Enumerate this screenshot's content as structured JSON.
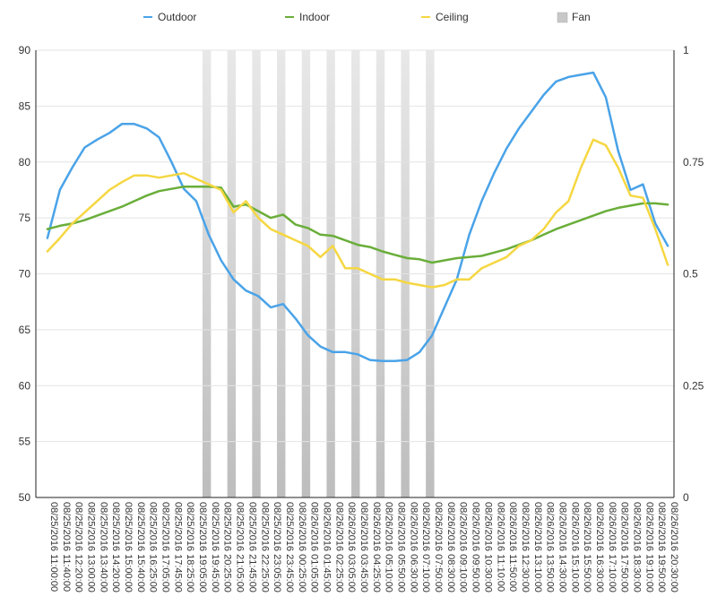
{
  "chart_data": {
    "type": "line",
    "legend": [
      {
        "name": "Outdoor",
        "color": "#4aa3e8",
        "kind": "line"
      },
      {
        "name": "Indoor",
        "color": "#6aae3a",
        "kind": "line"
      },
      {
        "name": "Ceiling",
        "color": "#f5d742",
        "kind": "line"
      },
      {
        "name": "Fan",
        "color": "#c8c8c8",
        "kind": "bar"
      }
    ],
    "legend_position": "top",
    "grid": true,
    "y_left": {
      "ticks": [
        50,
        55,
        60,
        65,
        70,
        75,
        80,
        85,
        90
      ],
      "range": [
        50,
        90
      ]
    },
    "y_right": {
      "ticks": [
        "0",
        "0.25",
        "0.5",
        "0.75",
        "1"
      ],
      "range": [
        0,
        1
      ]
    },
    "x_labels": [
      "08/25/2016 11:00:00",
      "08/25/2016 11:40:00",
      "08/25/2016 12:20:00",
      "08/25/2016 13:00:00",
      "08/25/2016 13:40:00",
      "08/25/2016 14:20:00",
      "08/25/2016 15:00:00",
      "08/25/2016 15:40:00",
      "08/25/2016 16:25:00",
      "08/25/2016 17:05:00",
      "08/25/2016 17:45:00",
      "08/25/2016 18:25:00",
      "08/25/2016 19:05:00",
      "08/25/2016 19:45:00",
      "08/25/2016 20:25:00",
      "08/25/2016 21:05:00",
      "08/25/2016 21:45:00",
      "08/25/2016 22:25:00",
      "08/25/2016 23:05:00",
      "08/25/2016 23:45:00",
      "08/26/2016 00:25:00",
      "08/26/2016 01:05:00",
      "08/26/2016 01:45:00",
      "08/26/2016 02:25:00",
      "08/26/2016 03:05:00",
      "08/26/2016 03:45:00",
      "08/26/2016 04:25:00",
      "08/26/2016 05:10:00",
      "08/26/2016 05:50:00",
      "08/26/2016 06:30:00",
      "08/26/2016 07:10:00",
      "08/26/2016 07:50:00",
      "08/26/2016 08:30:00",
      "08/26/2016 09:10:00",
      "08/26/2016 09:50:00",
      "08/26/2016 10:30:00",
      "08/26/2016 11:10:00",
      "08/26/2016 11:50:00",
      "08/26/2016 12:30:00",
      "08/26/2016 13:10:00",
      "08/26/2016 13:50:00",
      "08/26/2016 14:30:00",
      "08/26/2016 15:10:00",
      "08/26/2016 15:50:00",
      "08/26/2016 16:30:00",
      "08/26/2016 17:10:00",
      "08/26/2016 17:50:00",
      "08/26/2016 18:30:00",
      "08/26/2016 19:10:00",
      "08/26/2016 19:50:00",
      "08/26/2016 20:30:00"
    ],
    "fan_on_intervals": [
      {
        "start": "08/25/2016 19:45:00",
        "end": "08/25/2016 20:25:00",
        "value": 1
      },
      {
        "start": "08/25/2016 21:05:00",
        "end": "08/25/2016 21:45:00",
        "value": 1
      },
      {
        "start": "08/25/2016 22:25:00",
        "end": "08/25/2016 23:05:00",
        "value": 1
      },
      {
        "start": "08/25/2016 23:45:00",
        "end": "08/26/2016 00:25:00",
        "value": 1
      },
      {
        "start": "08/26/2016 01:05:00",
        "end": "08/26/2016 01:45:00",
        "value": 1
      },
      {
        "start": "08/26/2016 02:25:00",
        "end": "08/26/2016 03:05:00",
        "value": 1
      },
      {
        "start": "08/26/2016 03:45:00",
        "end": "08/26/2016 04:25:00",
        "value": 1
      },
      {
        "start": "08/26/2016 05:10:00",
        "end": "08/26/2016 05:50:00",
        "value": 1
      },
      {
        "start": "08/26/2016 06:30:00",
        "end": "08/26/2016 07:10:00",
        "value": 1
      },
      {
        "start": "08/26/2016 07:50:00",
        "end": "08/26/2016 08:30:00",
        "value": 1
      }
    ],
    "series": [
      {
        "name": "Outdoor",
        "x": [
          "08/25/2016 11:00:00",
          "08/25/2016 11:40:00",
          "08/25/2016 12:20:00",
          "08/25/2016 13:00:00",
          "08/25/2016 13:40:00",
          "08/25/2016 14:20:00",
          "08/25/2016 15:00:00",
          "08/25/2016 15:40:00",
          "08/25/2016 16:25:00",
          "08/25/2016 17:05:00",
          "08/25/2016 17:45:00",
          "08/25/2016 18:25:00",
          "08/25/2016 19:05:00",
          "08/25/2016 19:45:00",
          "08/25/2016 20:25:00",
          "08/25/2016 21:05:00",
          "08/25/2016 21:45:00",
          "08/25/2016 22:25:00",
          "08/25/2016 23:05:00",
          "08/25/2016 23:45:00",
          "08/26/2016 00:25:00",
          "08/26/2016 01:05:00",
          "08/26/2016 01:45:00",
          "08/26/2016 02:25:00",
          "08/26/2016 03:05:00",
          "08/26/2016 03:45:00",
          "08/26/2016 04:25:00",
          "08/26/2016 05:10:00",
          "08/26/2016 05:50:00",
          "08/26/2016 06:30:00",
          "08/26/2016 07:10:00",
          "08/26/2016 07:50:00",
          "08/26/2016 08:30:00",
          "08/26/2016 09:10:00",
          "08/26/2016 09:50:00",
          "08/26/2016 10:30:00",
          "08/26/2016 11:10:00",
          "08/26/2016 11:50:00",
          "08/26/2016 12:30:00",
          "08/26/2016 13:10:00",
          "08/26/2016 13:50:00",
          "08/26/2016 14:30:00",
          "08/26/2016 15:10:00",
          "08/26/2016 15:50:00",
          "08/26/2016 16:30:00",
          "08/26/2016 17:10:00",
          "08/26/2016 17:50:00",
          "08/26/2016 18:30:00",
          "08/26/2016 19:10:00",
          "08/26/2016 19:50:00",
          "08/26/2016 20:30:00"
        ],
        "y": [
          73.2,
          77.5,
          79.5,
          81.3,
          82.0,
          82.6,
          83.4,
          83.4,
          83.0,
          82.2,
          80.0,
          77.6,
          76.5,
          73.5,
          71.2,
          69.5,
          68.5,
          68.0,
          67.0,
          67.3,
          66.0,
          64.5,
          63.5,
          63.0,
          63.0,
          62.8,
          62.3,
          62.2,
          62.2,
          62.3,
          63.0,
          64.5,
          67.0,
          69.5,
          73.5,
          76.5,
          79.0,
          81.2,
          83.0,
          84.5,
          86.0,
          87.2,
          87.6,
          87.8,
          88.0,
          85.8,
          81.0,
          77.5,
          78.0,
          74.5,
          72.5
        ]
      },
      {
        "name": "Indoor",
        "x": [
          "08/25/2016 11:00:00",
          "08/25/2016 11:40:00",
          "08/25/2016 12:20:00",
          "08/25/2016 13:00:00",
          "08/25/2016 13:40:00",
          "08/25/2016 14:20:00",
          "08/25/2016 15:00:00",
          "08/25/2016 15:40:00",
          "08/25/2016 16:25:00",
          "08/25/2016 17:05:00",
          "08/25/2016 17:45:00",
          "08/25/2016 18:25:00",
          "08/25/2016 19:05:00",
          "08/25/2016 19:45:00",
          "08/25/2016 20:25:00",
          "08/25/2016 21:05:00",
          "08/25/2016 21:45:00",
          "08/25/2016 22:25:00",
          "08/25/2016 23:05:00",
          "08/25/2016 23:45:00",
          "08/26/2016 00:25:00",
          "08/26/2016 01:05:00",
          "08/26/2016 01:45:00",
          "08/26/2016 02:25:00",
          "08/26/2016 03:05:00",
          "08/26/2016 03:45:00",
          "08/26/2016 04:25:00",
          "08/26/2016 05:10:00",
          "08/26/2016 05:50:00",
          "08/26/2016 06:30:00",
          "08/26/2016 07:10:00",
          "08/26/2016 07:50:00",
          "08/26/2016 08:30:00",
          "08/26/2016 09:10:00",
          "08/26/2016 09:50:00",
          "08/26/2016 10:30:00",
          "08/26/2016 11:10:00",
          "08/26/2016 11:50:00",
          "08/26/2016 12:30:00",
          "08/26/2016 13:10:00",
          "08/26/2016 13:50:00",
          "08/26/2016 14:30:00",
          "08/26/2016 15:10:00",
          "08/26/2016 15:50:00",
          "08/26/2016 16:30:00",
          "08/26/2016 17:10:00",
          "08/26/2016 17:50:00",
          "08/26/2016 18:30:00",
          "08/26/2016 19:10:00",
          "08/26/2016 19:50:00",
          "08/26/2016 20:30:00"
        ],
        "y": [
          74.0,
          74.3,
          74.5,
          74.8,
          75.2,
          75.6,
          76.0,
          76.5,
          77.0,
          77.4,
          77.6,
          77.8,
          77.8,
          77.8,
          77.7,
          76.0,
          76.2,
          75.6,
          75.0,
          75.3,
          74.4,
          74.1,
          73.5,
          73.4,
          73.0,
          72.6,
          72.4,
          72.0,
          71.7,
          71.4,
          71.3,
          71.0,
          71.2,
          71.4,
          71.5,
          71.6,
          71.9,
          72.2,
          72.6,
          73.0,
          73.5,
          74.0,
          74.4,
          74.8,
          75.2,
          75.6,
          75.9,
          76.1,
          76.3,
          76.3,
          76.2
        ]
      },
      {
        "name": "Ceiling",
        "x": [
          "08/25/2016 11:00:00",
          "08/25/2016 11:40:00",
          "08/25/2016 12:20:00",
          "08/25/2016 13:00:00",
          "08/25/2016 13:40:00",
          "08/25/2016 14:20:00",
          "08/25/2016 15:00:00",
          "08/25/2016 15:40:00",
          "08/25/2016 16:25:00",
          "08/25/2016 17:05:00",
          "08/25/2016 17:45:00",
          "08/25/2016 18:25:00",
          "08/25/2016 19:05:00",
          "08/25/2016 19:45:00",
          "08/25/2016 20:25:00",
          "08/25/2016 21:05:00",
          "08/25/2016 21:45:00",
          "08/25/2016 22:25:00",
          "08/25/2016 23:05:00",
          "08/25/2016 23:45:00",
          "08/26/2016 00:25:00",
          "08/26/2016 01:05:00",
          "08/26/2016 01:45:00",
          "08/26/2016 02:25:00",
          "08/26/2016 03:05:00",
          "08/26/2016 03:45:00",
          "08/26/2016 04:25:00",
          "08/26/2016 05:10:00",
          "08/26/2016 05:50:00",
          "08/26/2016 06:30:00",
          "08/26/2016 07:10:00",
          "08/26/2016 07:50:00",
          "08/26/2016 08:30:00",
          "08/26/2016 09:10:00",
          "08/26/2016 09:50:00",
          "08/26/2016 10:30:00",
          "08/26/2016 11:10:00",
          "08/26/2016 11:50:00",
          "08/26/2016 12:30:00",
          "08/26/2016 13:10:00",
          "08/26/2016 13:50:00",
          "08/26/2016 14:30:00",
          "08/26/2016 15:10:00",
          "08/26/2016 15:50:00",
          "08/26/2016 16:30:00",
          "08/26/2016 17:10:00",
          "08/26/2016 17:50:00",
          "08/26/2016 18:30:00",
          "08/26/2016 19:10:00",
          "08/26/2016 19:50:00",
          "08/26/2016 20:30:00"
        ],
        "y": [
          72.0,
          73.2,
          74.5,
          75.5,
          76.5,
          77.5,
          78.2,
          78.8,
          78.8,
          78.6,
          78.8,
          79.0,
          78.5,
          78.0,
          77.5,
          75.5,
          76.5,
          75.0,
          74.0,
          73.5,
          73.0,
          72.5,
          71.5,
          72.5,
          70.5,
          70.5,
          70.0,
          69.5,
          69.5,
          69.2,
          69.0,
          68.8,
          69.0,
          69.5,
          69.5,
          70.5,
          71.0,
          71.5,
          72.5,
          73.0,
          74.0,
          75.5,
          76.5,
          79.5,
          82.0,
          81.5,
          79.5,
          77.0,
          76.8,
          74.0,
          70.8
        ]
      }
    ]
  }
}
